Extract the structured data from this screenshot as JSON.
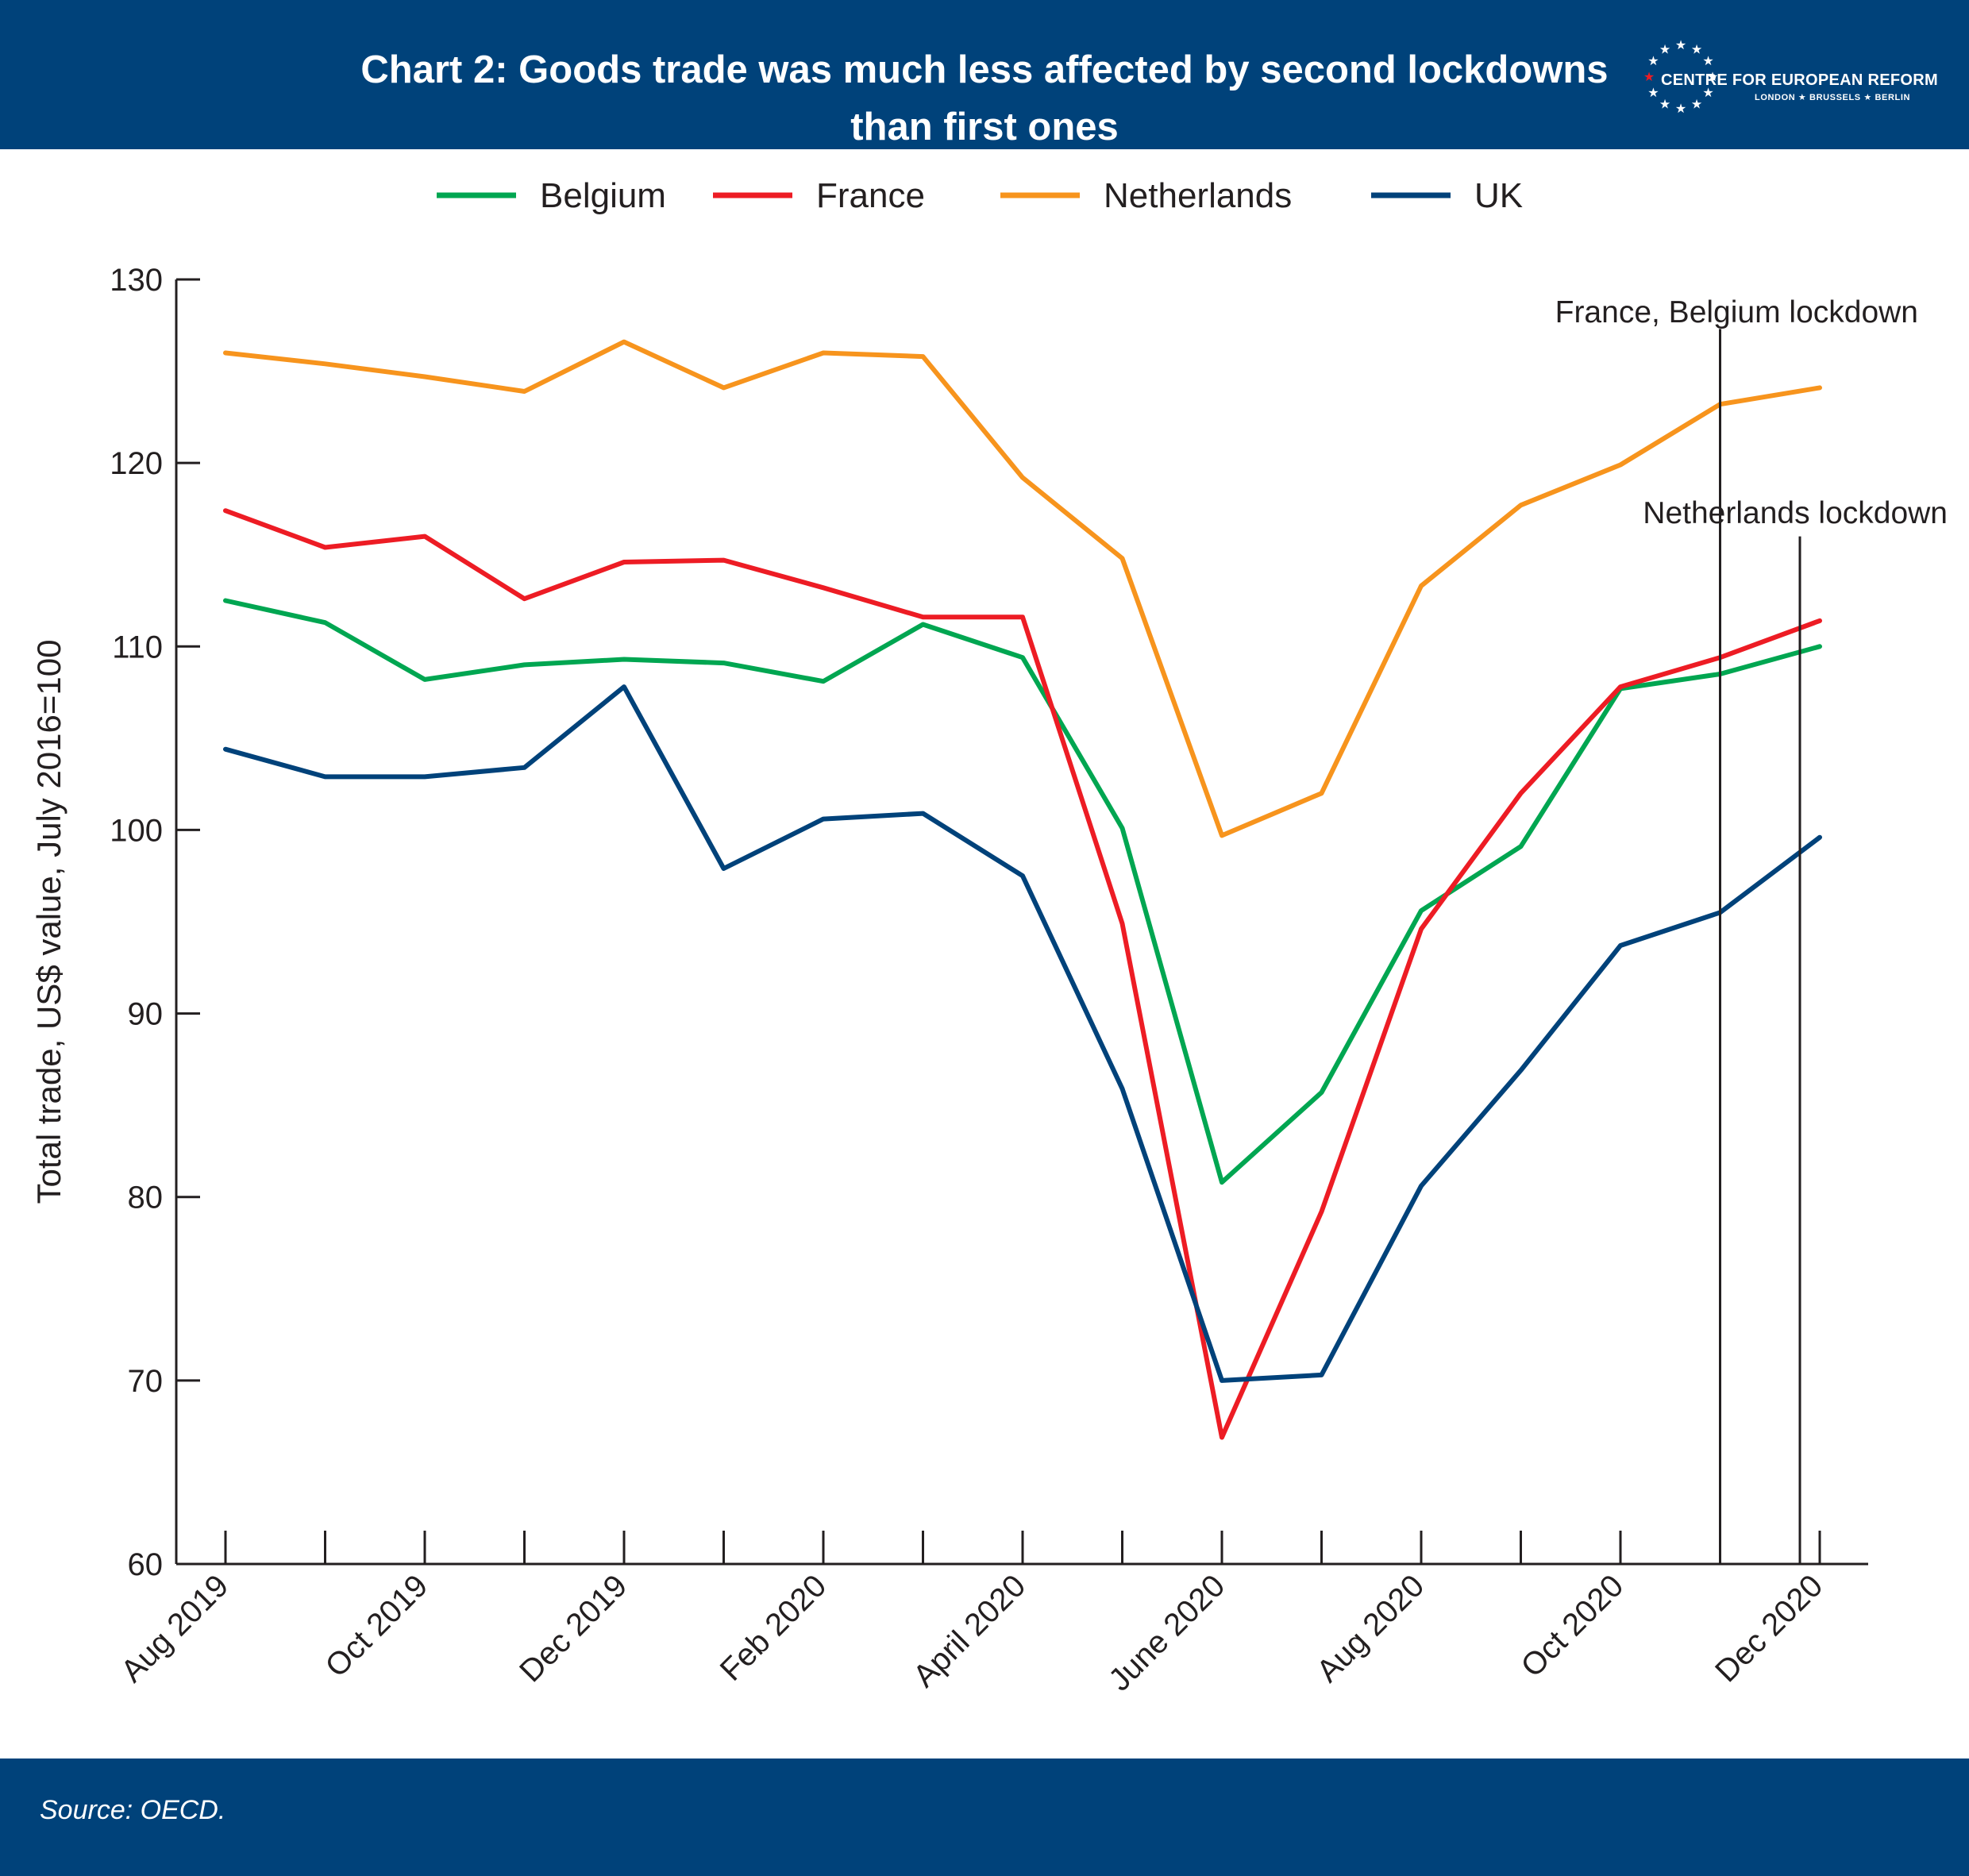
{
  "header": {
    "title_line1": "Chart 2: Goods trade was much less affected by second lockdowns",
    "title_line2": "than first ones",
    "logo_name": "CENTRE FOR EUROPEAN REFORM",
    "logo_cities": "LONDON ★ BRUSSELS ★ BERLIN",
    "background_color": "#00427a"
  },
  "footer": {
    "source": "Source: OECD."
  },
  "chart_data": {
    "type": "line",
    "title": "Chart 2: Goods trade was much less affected by second lockdowns than first ones",
    "xlabel": "",
    "ylabel": "Total trade, US$ value, July 2016=100",
    "ylim": [
      60,
      130
    ],
    "yticks": [
      60,
      70,
      80,
      90,
      100,
      110,
      120,
      130
    ],
    "x": [
      "Aug 2019",
      "Sep 2019",
      "Oct 2019",
      "Nov 2019",
      "Dec 2019",
      "Jan 2020",
      "Feb 2020",
      "Mar 2020",
      "April 2020",
      "May 2020",
      "June 2020",
      "Jul 2020",
      "Aug 2020",
      "Sep 2020",
      "Oct 2020",
      "Nov 2020",
      "Dec 2020"
    ],
    "xtick_labels": [
      "Aug 2019",
      "",
      "Oct 2019",
      "",
      "Dec 2019",
      "",
      "Feb 2020",
      "",
      "April 2020",
      "",
      "June 2020",
      "",
      "Aug 2020",
      "",
      "Oct 2020",
      "",
      "Dec 2020"
    ],
    "grid": false,
    "legend": "top",
    "series": [
      {
        "name": "Belgium",
        "color": "#00a651",
        "values": [
          112.5,
          111.3,
          108.2,
          109.0,
          109.3,
          109.1,
          108.1,
          111.2,
          109.4,
          100.1,
          80.8,
          85.7,
          95.6,
          99.1,
          107.7,
          108.5,
          110.0
        ]
      },
      {
        "name": "France",
        "color": "#ed1c24",
        "values": [
          117.4,
          115.4,
          116.0,
          112.6,
          114.6,
          114.7,
          113.2,
          111.6,
          111.6,
          94.9,
          66.9,
          79.2,
          94.6,
          102.0,
          107.8,
          109.4,
          111.4
        ]
      },
      {
        "name": "Netherlands",
        "color": "#f7941d",
        "values": [
          126.0,
          125.4,
          124.7,
          123.9,
          126.6,
          124.1,
          126.0,
          125.8,
          119.2,
          114.8,
          99.7,
          102.0,
          113.3,
          117.7,
          119.9,
          123.2,
          124.1
        ]
      },
      {
        "name": "UK",
        "color": "#00427a",
        "values": [
          104.4,
          102.9,
          102.9,
          103.4,
          107.8,
          97.9,
          100.6,
          100.9,
          97.5,
          85.9,
          70.0,
          70.3,
          80.6,
          86.9,
          93.7,
          95.5,
          99.6
        ]
      }
    ],
    "annotations": [
      {
        "text": "France, Belgium lockdown",
        "x": "Nov 2020",
        "top_value": 127.3
      },
      {
        "text": "Netherlands lockdown",
        "x": "Dec 2020",
        "top_value": 116.0
      }
    ]
  }
}
